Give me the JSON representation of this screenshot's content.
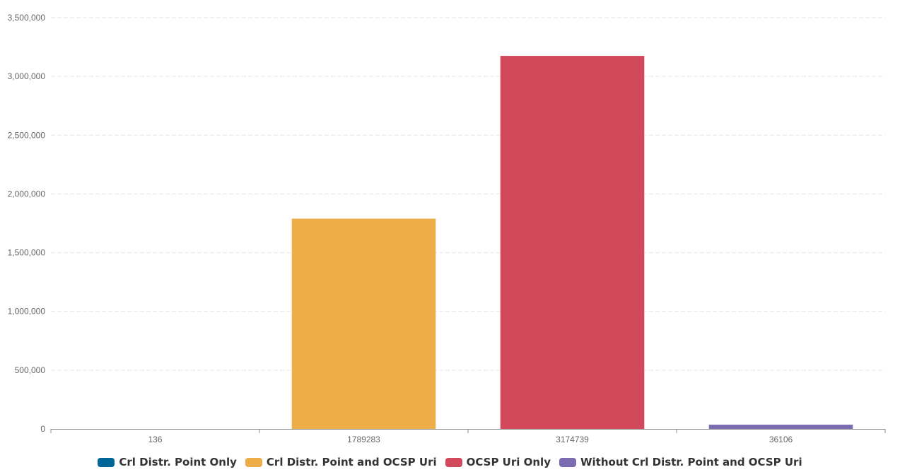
{
  "chart_data": {
    "type": "bar",
    "categories": [
      "136",
      "1789283",
      "3174739",
      "36106"
    ],
    "series": [
      {
        "name": "Crl Distr. Point Only",
        "color": "#00669a",
        "values": [
          136,
          0,
          0,
          0
        ]
      },
      {
        "name": "Crl Distr. Point and OCSP Uri",
        "color": "#edae49",
        "values": [
          0,
          1789283,
          0,
          0
        ]
      },
      {
        "name": "OCSP Uri Only",
        "color": "#d1495b",
        "values": [
          0,
          0,
          3174739,
          0
        ]
      },
      {
        "name": "Without Crl Distr. Point and OCSP Uri",
        "color": "#7b6bb0",
        "values": [
          0,
          0,
          0,
          36106
        ]
      }
    ],
    "ylim": [
      0,
      3500000
    ],
    "yticks": [
      0,
      500000,
      1000000,
      1500000,
      2000000,
      2500000,
      3000000,
      3500000
    ],
    "ytick_labels": [
      "0",
      "500,000",
      "1,000,000",
      "1,500,000",
      "2,000,000",
      "2,500,000",
      "3,000,000",
      "3,500,000"
    ],
    "grid": true,
    "legend_position": "bottom"
  }
}
